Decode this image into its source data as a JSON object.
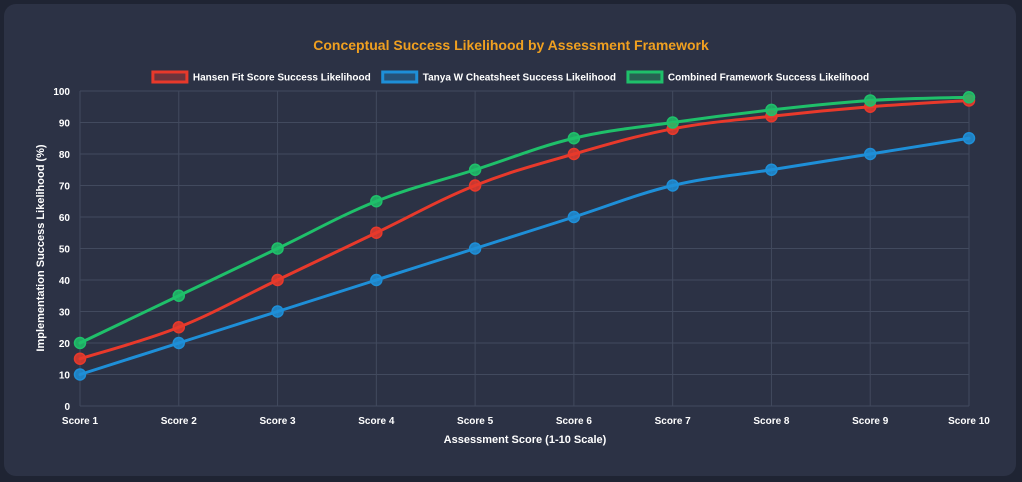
{
  "chart_data": {
    "type": "line",
    "title": "Conceptual Success Likelihood by Assessment Framework",
    "xlabel": "Assessment Score (1-10 Scale)",
    "ylabel": "Implementation Success Likelihood (%)",
    "categories": [
      "Score 1",
      "Score 2",
      "Score 3",
      "Score 4",
      "Score 5",
      "Score 6",
      "Score 7",
      "Score 8",
      "Score 9",
      "Score 10"
    ],
    "ylim": [
      0,
      100
    ],
    "yticks": [
      0,
      10,
      20,
      30,
      40,
      50,
      60,
      70,
      80,
      90,
      100
    ],
    "grid": true,
    "legend_position": "top",
    "series": [
      {
        "name": "Hansen Fit Score Success Likelihood",
        "color": "#e8392b",
        "values": [
          15,
          25,
          40,
          55,
          70,
          80,
          88,
          92,
          95,
          97
        ]
      },
      {
        "name": "Tanya W Cheatsheet Success Likelihood",
        "color": "#1e8fd8",
        "values": [
          10,
          20,
          30,
          40,
          50,
          60,
          70,
          75,
          80,
          85
        ]
      },
      {
        "name": "Combined Framework Success Likelihood",
        "color": "#1fc06a",
        "values": [
          20,
          35,
          50,
          65,
          75,
          85,
          90,
          94,
          97,
          98
        ]
      }
    ]
  },
  "colors": {
    "background": "#2c3245",
    "title": "#f0a020",
    "grid": "#424a5e"
  }
}
